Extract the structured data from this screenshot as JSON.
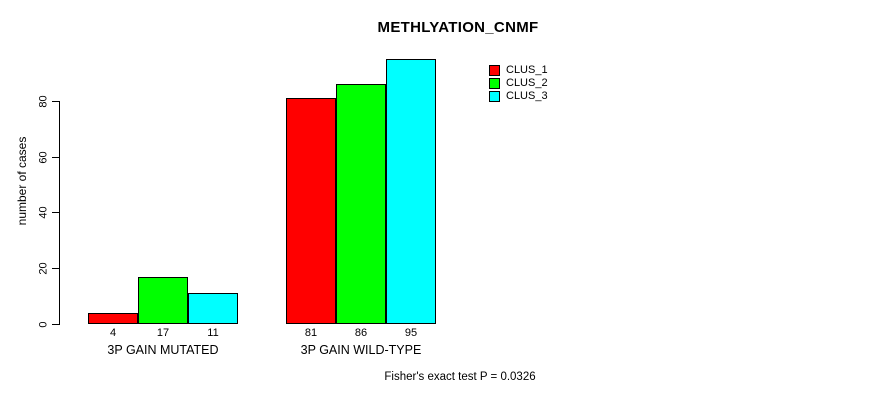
{
  "chart_data": {
    "type": "bar",
    "title": "METHLYATION_CNMF",
    "xlabel": "",
    "ylabel": "number of cases",
    "categories": [
      "3P GAIN MUTATED",
      "3P GAIN WILD-TYPE"
    ],
    "series": [
      {
        "name": "CLUS_1",
        "color": "#ff0000",
        "values": [
          4,
          81
        ]
      },
      {
        "name": "CLUS_2",
        "color": "#00ff00",
        "values": [
          17,
          86
        ]
      },
      {
        "name": "CLUS_3",
        "color": "#00ffff",
        "values": [
          11,
          95
        ]
      }
    ],
    "yticks": [
      0,
      20,
      40,
      60,
      80
    ],
    "ylim": [
      0,
      96
    ],
    "bar_value_labels": [
      [
        4,
        17,
        11
      ],
      [
        81,
        86,
        95
      ]
    ],
    "grid": false,
    "legend_position": "top-right",
    "annotation": "Fisher's exact test P = 0.0326"
  },
  "footnote": "Fisher's exact test P = 0.0326",
  "colors": {
    "background": "#ffffff",
    "axis": "#000000",
    "text": "#000000",
    "clus_1": "#ff0000",
    "clus_2": "#00ff00",
    "clus_3": "#00ffff"
  }
}
